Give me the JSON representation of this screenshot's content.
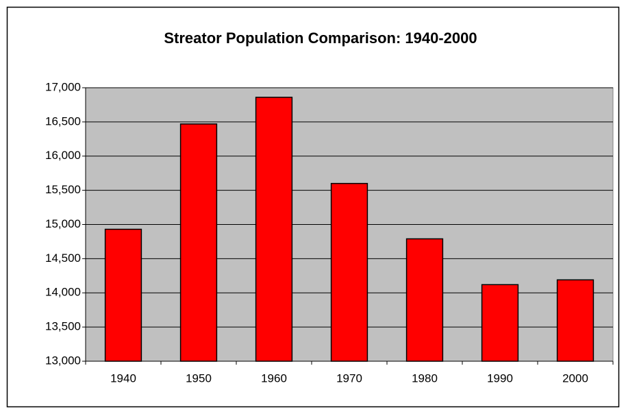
{
  "chart_data": {
    "type": "bar",
    "title": "Streator Population Comparison: 1940-2000",
    "categories": [
      "1940",
      "1950",
      "1960",
      "1970",
      "1980",
      "1990",
      "2000"
    ],
    "values": [
      14930,
      16470,
      16860,
      15600,
      14790,
      14120,
      14190
    ],
    "color": "#ff0000",
    "ylim": [
      13000,
      17000
    ],
    "yticks": [
      {
        "value": 13000,
        "label": "13,000"
      },
      {
        "value": 13500,
        "label": "13,500"
      },
      {
        "value": 14000,
        "label": "14,000"
      },
      {
        "value": 14500,
        "label": "14,500"
      },
      {
        "value": 15000,
        "label": "15,000"
      },
      {
        "value": 15500,
        "label": "15,500"
      },
      {
        "value": 16000,
        "label": "16,000"
      },
      {
        "value": 16500,
        "label": "16,500"
      },
      {
        "value": 17000,
        "label": "17,000"
      }
    ],
    "grid": true
  }
}
